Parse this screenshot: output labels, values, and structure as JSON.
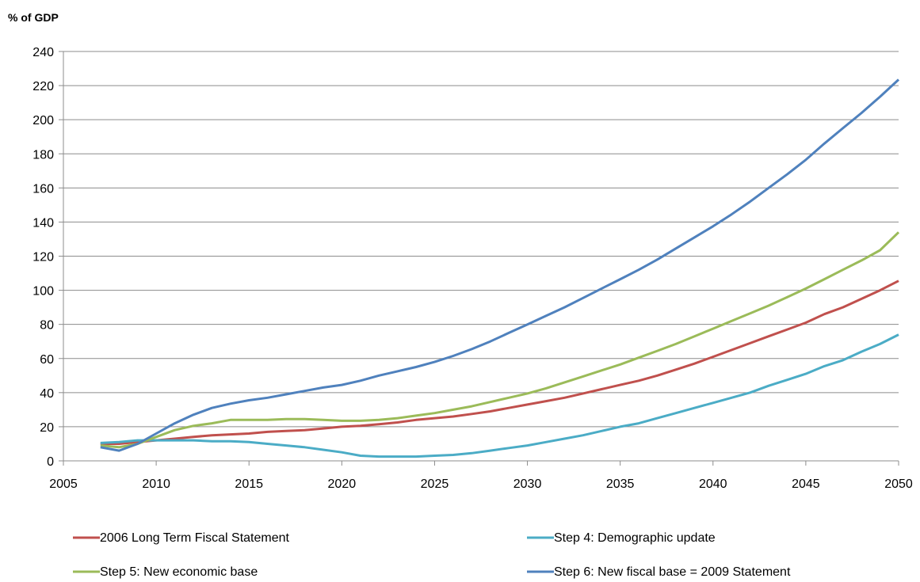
{
  "chart_data": {
    "type": "line",
    "ylabel": "% of GDP",
    "xlabel": "",
    "title": "",
    "xlim": [
      2005,
      2050
    ],
    "ylim": [
      0,
      240
    ],
    "x_ticks": [
      2005,
      2010,
      2015,
      2020,
      2025,
      2030,
      2035,
      2040,
      2045,
      2050
    ],
    "y_ticks": [
      0,
      20,
      40,
      60,
      80,
      100,
      120,
      140,
      160,
      180,
      200,
      220,
      240
    ],
    "grid": "horizontal",
    "legend_position": "bottom",
    "x": [
      2007,
      2008,
      2009,
      2010,
      2011,
      2012,
      2013,
      2014,
      2015,
      2016,
      2017,
      2018,
      2019,
      2020,
      2021,
      2022,
      2023,
      2024,
      2025,
      2026,
      2027,
      2028,
      2029,
      2030,
      2031,
      2032,
      2033,
      2034,
      2035,
      2036,
      2037,
      2038,
      2039,
      2040,
      2041,
      2042,
      2043,
      2044,
      2045,
      2046,
      2047,
      2048,
      2049,
      2050
    ],
    "series": [
      {
        "name": "2006 Long Term Fiscal Statement",
        "color": "#c0504d",
        "values": [
          10,
          10,
          11,
          12,
          13,
          14,
          15,
          15.5,
          16,
          17,
          17.5,
          18,
          19,
          20,
          20.5,
          21.5,
          22.5,
          24,
          25,
          26,
          27.5,
          29,
          31,
          33,
          35,
          37,
          39.5,
          42,
          44.5,
          47,
          50,
          53.5,
          57,
          61,
          65,
          69,
          73,
          77,
          81,
          86,
          90,
          95,
          100,
          105.5
        ]
      },
      {
        "name": "Step 4: Demographic update",
        "color": "#4bacc6",
        "values": [
          10.5,
          11,
          12,
          12,
          12,
          12,
          11.5,
          11.5,
          11,
          10,
          9,
          8,
          6.5,
          5,
          3,
          2.5,
          2.5,
          2.5,
          3,
          3.5,
          4.5,
          6,
          7.5,
          9,
          11,
          13,
          15,
          17.5,
          20,
          22,
          25,
          28,
          31,
          34,
          37,
          40,
          44,
          47.5,
          51,
          55.5,
          59,
          64,
          68.5,
          74
        ]
      },
      {
        "name": "Step 5: New economic base",
        "color": "#9bbb59",
        "values": [
          9,
          8,
          10,
          14,
          18,
          20.5,
          22,
          24,
          24,
          24,
          24.5,
          24.5,
          24,
          23.5,
          23.5,
          24,
          25,
          26.5,
          28,
          30,
          32,
          34.5,
          37,
          39.5,
          42.5,
          46,
          49.5,
          53,
          56.5,
          60.5,
          64.5,
          68.5,
          73,
          77.5,
          82,
          86.5,
          91,
          96,
          101,
          106.5,
          112,
          117.5,
          123.5,
          134
        ]
      },
      {
        "name": "Step 6: New fiscal base = 2009 Statement",
        "color": "#4f81bd",
        "values": [
          8,
          6,
          10,
          16,
          22,
          27,
          31,
          33.5,
          35.5,
          37,
          39,
          41,
          43,
          44.5,
          47,
          50,
          52.5,
          55,
          58,
          61.5,
          65.5,
          70,
          75,
          80,
          85,
          90,
          95.5,
          101,
          106.5,
          112,
          118,
          124.5,
          131,
          137.5,
          144.5,
          152,
          160,
          168,
          176.5,
          186,
          195,
          204,
          213.5,
          223.5
        ]
      }
    ]
  }
}
